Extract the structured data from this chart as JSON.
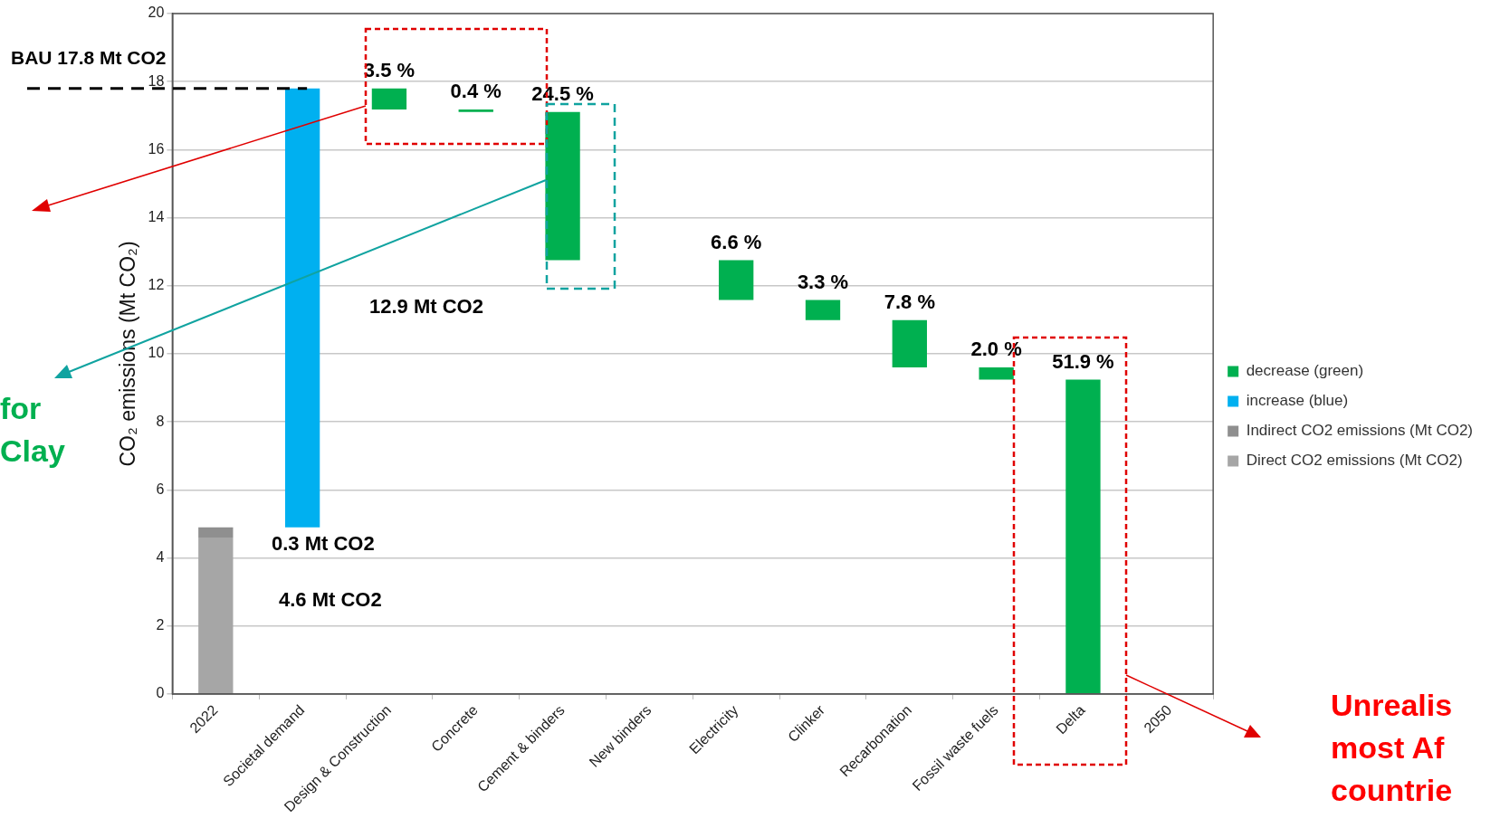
{
  "chart_data": {
    "type": "bar",
    "ylabel": "CO₂ emissions (Mt CO₂)",
    "categories": [
      "2022",
      "Societal demand",
      "Design & Construction",
      "Concrete",
      "Cement & binders",
      "New binders",
      "Electricity",
      "Clinker",
      "Recarbonation",
      "Fossil waste fuels",
      "Delta",
      "2050"
    ],
    "series": [
      {
        "name": "decrease (green)",
        "color": "#00b050",
        "values": [
          null,
          null,
          0.62,
          0.07,
          4.36,
          null,
          1.17,
          0.59,
          1.39,
          0.36,
          9.24,
          null
        ],
        "base": [
          null,
          null,
          17.18,
          17.11,
          12.75,
          null,
          11.58,
          10.99,
          9.6,
          9.24,
          0,
          null
        ]
      },
      {
        "name": "increase (blue)",
        "color": "#00b0f0",
        "values": [
          null,
          12.9,
          null,
          null,
          null,
          null,
          null,
          null,
          null,
          null,
          null,
          null
        ],
        "base": [
          null,
          4.9,
          null,
          null,
          null,
          null,
          null,
          null,
          null,
          null,
          null,
          null
        ]
      },
      {
        "name": "Indirect CO2 emissions (Mt CO2)",
        "color": "#8f8f8f",
        "values": [
          0.3,
          null,
          null,
          null,
          null,
          null,
          null,
          null,
          null,
          null,
          null,
          null
        ],
        "base": [
          4.6,
          null,
          null,
          null,
          null,
          null,
          null,
          null,
          null,
          null,
          null,
          null
        ]
      },
      {
        "name": "Direct CO2 emissions (Mt CO2)",
        "color": "#a6a6a6",
        "values": [
          4.6,
          null,
          null,
          null,
          null,
          null,
          null,
          null,
          null,
          null,
          null,
          null
        ],
        "base": [
          0,
          null,
          null,
          null,
          null,
          null,
          null,
          null,
          null,
          null,
          null,
          null
        ]
      }
    ],
    "ylim": [
      0,
      20
    ],
    "yticks": [
      0,
      2,
      4,
      6,
      8,
      10,
      12,
      14,
      16,
      18,
      20
    ],
    "grid": "y",
    "legend": "right",
    "ref_lines": [
      {
        "axis": "y",
        "value": 17.8,
        "label": "BAU 17.8 Mt CO2",
        "color": "#000000",
        "line_style": "dashed"
      }
    ],
    "annotations": [
      "for\nClay",
      "Unrealis\nmost Af\ncountrie",
      "0.3 Mt CO2",
      "4.6 Mt CO2",
      "12.9 Mt CO2",
      {
        "text": "3.5 %",
        "x": "Design & Construction",
        "y": 17.8
      },
      {
        "text": "0.4 %",
        "x": "Concrete",
        "y": 17.18
      },
      {
        "text": "24.5 %",
        "x": "Cement & binders",
        "y": 17.11
      },
      {
        "text": "6.6 %",
        "x": "Electricity",
        "y": 12.75
      },
      {
        "text": "3.3 %",
        "x": "Clinker",
        "y": 11.58
      },
      {
        "text": "7.8 %",
        "x": "Recarbonation",
        "y": 10.99
      },
      {
        "text": "2.0 %",
        "x": "Fossil waste fuels",
        "y": 9.6
      },
      {
        "text": "51.9 %",
        "x": "Delta",
        "y": 9.24
      }
    ]
  }
}
